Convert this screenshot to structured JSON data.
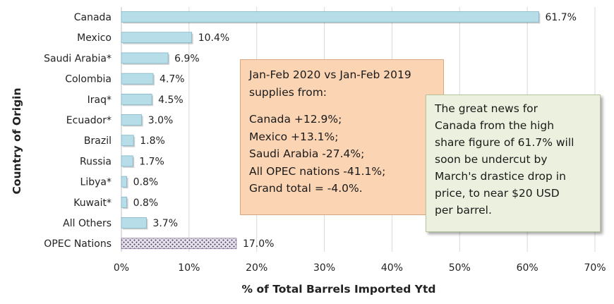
{
  "chart_data": {
    "type": "bar",
    "orientation": "horizontal",
    "xlabel": "% of Total Barrels Imported Ytd",
    "ylabel": "Country of Origin",
    "xlim": [
      0,
      70
    ],
    "xticks": [
      0,
      10,
      20,
      30,
      40,
      50,
      60,
      70
    ],
    "tick_format": "{v}%",
    "value_format": "{v}%",
    "grid": "vertical",
    "categories": [
      "Canada",
      "Mexico",
      "Saudi Arabia*",
      "Colombia",
      "Iraq*",
      "Ecuador*",
      "Brazil",
      "Russia",
      "Libya*",
      "Kuwait*",
      "All Others",
      "OPEC Nations"
    ],
    "values": [
      61.7,
      10.4,
      6.9,
      4.7,
      4.5,
      3.0,
      1.8,
      1.7,
      0.8,
      0.8,
      3.7,
      17.0
    ],
    "bar_styles": [
      "solid",
      "solid",
      "solid",
      "solid",
      "solid",
      "solid",
      "solid",
      "solid",
      "solid",
      "solid",
      "solid",
      "dotted"
    ],
    "colors": {
      "bar": "#b7dee8",
      "bar_edge": "#7fb3c4",
      "pattern_bg": "#e6e0ec",
      "pattern_dot": "#3f3151",
      "grid": "#d9d9d9"
    },
    "annotations": [
      {
        "id": "comparison",
        "heading": "Jan-Feb 2020 vs Jan-Feb 2019\nsupplies from:",
        "lines": [
          "Canada +12.9%;",
          "Mexico +13.1%;",
          "Saudi Arabia -27.4%;",
          "All OPEC nations -41.1%;",
          "Grand total = -4.0%."
        ],
        "background": "#fbd4b4"
      },
      {
        "id": "canada_note",
        "text": "The great news for\nCanada from the high\nshare figure of 61.7% will\nsoon be undercut by\nMarch's drastice drop in\nprice, to near $20 USD\nper barrel.",
        "background": "#ebf1de"
      }
    ]
  }
}
